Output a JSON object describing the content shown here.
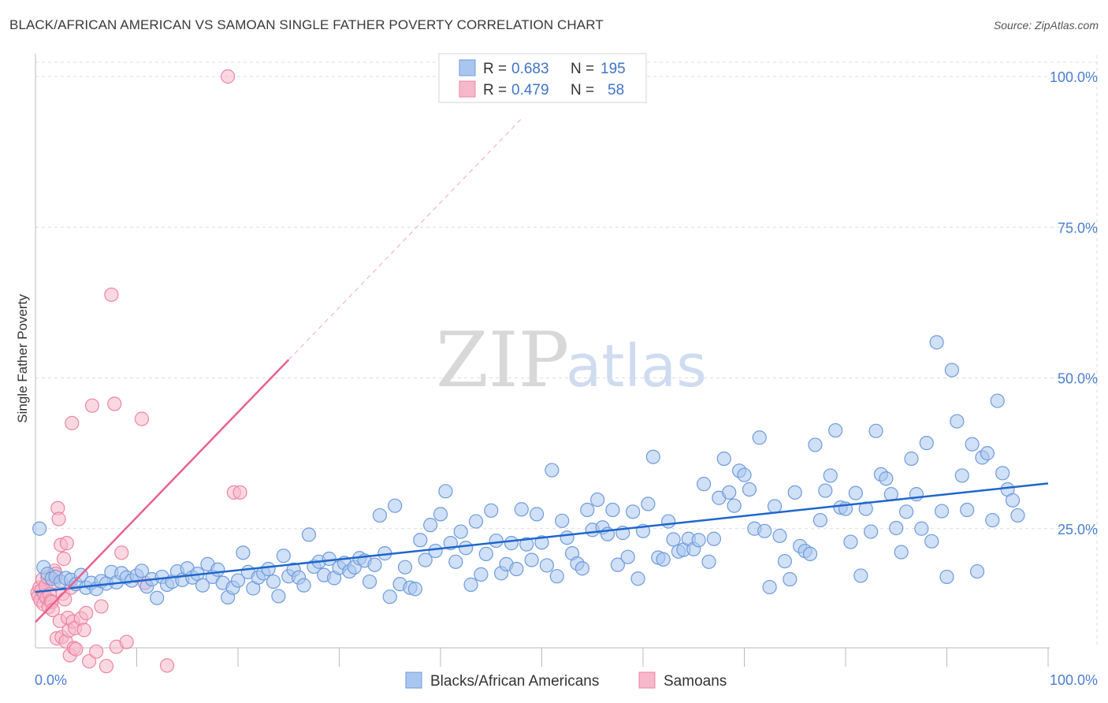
{
  "title": "BLACK/AFRICAN AMERICAN VS SAMOAN SINGLE FATHER POVERTY CORRELATION CHART",
  "source": "Source: ZipAtlas.com",
  "watermark": {
    "zip": "ZIP",
    "atlas": "atlas"
  },
  "colors": {
    "blue_fill": "#a9c6ef",
    "blue_stroke": "#6f9bdc",
    "blue_line": "#1f66cc",
    "pink_fill": "#f6b8ca",
    "pink_stroke": "#ee85a5",
    "pink_line": "#e8628e",
    "tick_text": "#4a7fd0",
    "grid": "#dcdcdc"
  },
  "chart_data": {
    "type": "scatter",
    "ylabel": "Single Father Poverty",
    "xlabel": "",
    "xlim": [
      0,
      100
    ],
    "ylim": [
      0,
      105
    ],
    "y_ticks": [
      25,
      50,
      75,
      100
    ],
    "y_tick_labels": [
      "25.0%",
      "50.0%",
      "75.0%",
      "100.0%"
    ],
    "x_tick_labels": [
      "0.0%",
      "100.0%"
    ],
    "grid": true,
    "legend": [
      {
        "r_label": "R =",
        "r": "0.683",
        "n_label": "N =",
        "n": "195"
      },
      {
        "r_label": "R =",
        "r": "0.479",
        "n_label": "N =",
        "n": "58"
      }
    ],
    "bottom_legend": [
      "Blacks/African Americans",
      "Samoans"
    ],
    "series": [
      {
        "name": "Blacks/African Americans",
        "trend": {
          "x0": 0,
          "y0": 14.5,
          "x1": 100,
          "y1": 32.5
        },
        "points": [
          [
            0.4,
            25.0
          ],
          [
            0.8,
            18.6
          ],
          [
            1.2,
            17.5
          ],
          [
            1.6,
            16.7
          ],
          [
            2.0,
            17.0
          ],
          [
            2.5,
            16.2
          ],
          [
            3.0,
            16.8
          ],
          [
            3.5,
            16.5
          ],
          [
            4.0,
            15.8
          ],
          [
            4.5,
            17.3
          ],
          [
            5.0,
            15.2
          ],
          [
            5.5,
            16.0
          ],
          [
            6.0,
            15.0
          ],
          [
            6.5,
            16.3
          ],
          [
            7.0,
            15.9
          ],
          [
            7.5,
            17.8
          ],
          [
            8.0,
            16.1
          ],
          [
            8.5,
            17.6
          ],
          [
            9.0,
            16.9
          ],
          [
            9.5,
            16.4
          ],
          [
            10.0,
            17.2
          ],
          [
            10.5,
            18.0
          ],
          [
            11.0,
            15.4
          ],
          [
            11.5,
            16.6
          ],
          [
            12.0,
            13.5
          ],
          [
            12.5,
            17.0
          ],
          [
            13.0,
            15.7
          ],
          [
            13.5,
            16.2
          ],
          [
            14.0,
            17.9
          ],
          [
            14.5,
            16.5
          ],
          [
            15.0,
            18.4
          ],
          [
            15.5,
            16.9
          ],
          [
            16.0,
            17.5
          ],
          [
            16.5,
            15.6
          ],
          [
            17.0,
            19.1
          ],
          [
            17.5,
            17.0
          ],
          [
            18.0,
            18.2
          ],
          [
            18.5,
            16.0
          ],
          [
            19.0,
            13.6
          ],
          [
            19.5,
            15.2
          ],
          [
            20.0,
            16.4
          ],
          [
            20.5,
            21.0
          ],
          [
            21.0,
            17.8
          ],
          [
            21.5,
            15.1
          ],
          [
            22.0,
            16.9
          ],
          [
            22.5,
            17.6
          ],
          [
            23.0,
            18.3
          ],
          [
            23.5,
            16.2
          ],
          [
            24.0,
            13.8
          ],
          [
            24.5,
            20.5
          ],
          [
            25.0,
            17.1
          ],
          [
            25.5,
            18.2
          ],
          [
            26.0,
            16.9
          ],
          [
            26.5,
            15.6
          ],
          [
            27.0,
            24.0
          ],
          [
            27.5,
            18.7
          ],
          [
            28.0,
            19.5
          ],
          [
            28.5,
            17.3
          ],
          [
            29.0,
            20.0
          ],
          [
            29.5,
            16.8
          ],
          [
            30.0,
            18.5
          ],
          [
            30.5,
            19.3
          ],
          [
            31.0,
            17.9
          ],
          [
            31.5,
            18.6
          ],
          [
            32.0,
            20.1
          ],
          [
            32.5,
            19.7
          ],
          [
            33.0,
            16.2
          ],
          [
            33.5,
            19.0
          ],
          [
            34.0,
            27.2
          ],
          [
            34.5,
            20.9
          ],
          [
            35.0,
            13.7
          ],
          [
            35.5,
            28.8
          ],
          [
            36.0,
            15.8
          ],
          [
            36.5,
            18.6
          ],
          [
            37.0,
            15.2
          ],
          [
            37.5,
            15.0
          ],
          [
            38.0,
            23.1
          ],
          [
            38.5,
            19.8
          ],
          [
            39.0,
            25.6
          ],
          [
            39.5,
            21.3
          ],
          [
            40.0,
            27.4
          ],
          [
            40.5,
            31.2
          ],
          [
            41.0,
            22.6
          ],
          [
            41.5,
            19.5
          ],
          [
            42.0,
            24.5
          ],
          [
            42.5,
            21.8
          ],
          [
            43.0,
            15.7
          ],
          [
            43.5,
            26.2
          ],
          [
            44.0,
            17.4
          ],
          [
            44.5,
            20.8
          ],
          [
            45.0,
            28.0
          ],
          [
            45.5,
            23.0
          ],
          [
            46.0,
            17.6
          ],
          [
            46.5,
            19.1
          ],
          [
            47.0,
            22.6
          ],
          [
            47.5,
            18.3
          ],
          [
            48.0,
            28.2
          ],
          [
            48.5,
            22.4
          ],
          [
            49.0,
            19.8
          ],
          [
            49.5,
            27.4
          ],
          [
            50.0,
            22.7
          ],
          [
            50.5,
            18.9
          ],
          [
            51.0,
            34.7
          ],
          [
            51.5,
            17.1
          ],
          [
            52.0,
            26.3
          ],
          [
            52.5,
            23.5
          ],
          [
            53.0,
            20.9
          ],
          [
            53.5,
            19.2
          ],
          [
            54.0,
            18.4
          ],
          [
            54.5,
            28.1
          ],
          [
            55.0,
            24.8
          ],
          [
            55.5,
            29.8
          ],
          [
            56.0,
            25.2
          ],
          [
            56.5,
            24.1
          ],
          [
            57.0,
            28.1
          ],
          [
            57.5,
            19.0
          ],
          [
            58.0,
            24.3
          ],
          [
            58.5,
            20.3
          ],
          [
            59.0,
            27.8
          ],
          [
            59.5,
            16.7
          ],
          [
            60.0,
            24.6
          ],
          [
            60.5,
            29.1
          ],
          [
            61.0,
            36.9
          ],
          [
            61.5,
            20.2
          ],
          [
            62.0,
            19.9
          ],
          [
            62.5,
            26.2
          ],
          [
            63.0,
            23.2
          ],
          [
            63.5,
            21.2
          ],
          [
            64.0,
            21.5
          ],
          [
            64.5,
            23.3
          ],
          [
            65.0,
            21.6
          ],
          [
            65.5,
            23.1
          ],
          [
            66.0,
            32.4
          ],
          [
            66.5,
            19.5
          ],
          [
            67.0,
            23.3
          ],
          [
            67.5,
            30.1
          ],
          [
            68.0,
            36.6
          ],
          [
            68.5,
            31.0
          ],
          [
            69.0,
            28.8
          ],
          [
            69.5,
            34.6
          ],
          [
            70.0,
            33.9
          ],
          [
            70.5,
            31.5
          ],
          [
            71.0,
            25.0
          ],
          [
            71.5,
            40.1
          ],
          [
            72.0,
            24.6
          ],
          [
            72.5,
            15.3
          ],
          [
            73.0,
            28.7
          ],
          [
            73.5,
            23.8
          ],
          [
            74.0,
            19.6
          ],
          [
            74.5,
            16.6
          ],
          [
            75.0,
            31.0
          ],
          [
            75.5,
            22.1
          ],
          [
            76.0,
            21.3
          ],
          [
            76.5,
            20.8
          ],
          [
            77.0,
            38.9
          ],
          [
            77.5,
            26.4
          ],
          [
            78.0,
            31.3
          ],
          [
            78.5,
            33.8
          ],
          [
            79.0,
            41.3
          ],
          [
            79.5,
            28.5
          ],
          [
            80.0,
            28.3
          ],
          [
            80.5,
            22.8
          ],
          [
            81.0,
            30.9
          ],
          [
            81.5,
            17.2
          ],
          [
            82.0,
            28.3
          ],
          [
            82.5,
            24.5
          ],
          [
            83.0,
            41.2
          ],
          [
            83.5,
            34.0
          ],
          [
            84.0,
            33.3
          ],
          [
            84.5,
            30.7
          ],
          [
            85.0,
            25.1
          ],
          [
            85.5,
            21.1
          ],
          [
            86.0,
            27.8
          ],
          [
            86.5,
            36.6
          ],
          [
            87.0,
            30.7
          ],
          [
            87.5,
            25.0
          ],
          [
            88.0,
            39.2
          ],
          [
            88.5,
            22.9
          ],
          [
            89.0,
            55.9
          ],
          [
            89.5,
            27.9
          ],
          [
            90.0,
            17.0
          ],
          [
            90.5,
            51.3
          ],
          [
            91.0,
            42.8
          ],
          [
            91.5,
            33.8
          ],
          [
            92.0,
            28.1
          ],
          [
            92.5,
            39.0
          ],
          [
            93.0,
            17.9
          ],
          [
            93.5,
            36.8
          ],
          [
            94.0,
            37.5
          ],
          [
            94.5,
            26.4
          ],
          [
            95.0,
            46.2
          ],
          [
            95.5,
            34.2
          ],
          [
            96.0,
            31.5
          ],
          [
            96.5,
            29.7
          ],
          [
            97.0,
            27.2
          ]
        ]
      },
      {
        "name": "Samoans",
        "trend": {
          "x0": 0,
          "y0": 9.5,
          "x1": 25,
          "y1": 53.0,
          "dash_x1": 48,
          "dash_y1": 93.0
        },
        "points": [
          [
            0.2,
            14.4
          ],
          [
            0.3,
            13.8
          ],
          [
            0.4,
            15.2
          ],
          [
            0.5,
            13.1
          ],
          [
            0.6,
            14.8
          ],
          [
            0.7,
            16.6
          ],
          [
            0.8,
            12.5
          ],
          [
            0.9,
            14.0
          ],
          [
            1.0,
            15.5
          ],
          [
            1.1,
            13.5
          ],
          [
            1.2,
            16.9
          ],
          [
            1.3,
            12.0
          ],
          [
            1.4,
            14.1
          ],
          [
            1.5,
            13.0
          ],
          [
            1.6,
            12.8
          ],
          [
            1.7,
            11.5
          ],
          [
            1.8,
            16.2
          ],
          [
            1.9,
            18.0
          ],
          [
            2.0,
            17.5
          ],
          [
            2.1,
            6.8
          ],
          [
            2.2,
            28.4
          ],
          [
            2.3,
            26.6
          ],
          [
            2.4,
            9.7
          ],
          [
            2.5,
            22.3
          ],
          [
            2.6,
            7.0
          ],
          [
            2.7,
            14.2
          ],
          [
            2.8,
            20.0
          ],
          [
            2.9,
            13.3
          ],
          [
            3.0,
            6.3
          ],
          [
            3.1,
            22.6
          ],
          [
            3.2,
            10.2
          ],
          [
            3.3,
            8.1
          ],
          [
            3.4,
            4.0
          ],
          [
            3.5,
            15.2
          ],
          [
            3.6,
            42.5
          ],
          [
            3.7,
            9.6
          ],
          [
            3.8,
            5.2
          ],
          [
            3.9,
            8.5
          ],
          [
            4.0,
            5.0
          ],
          [
            4.5,
            10.1
          ],
          [
            4.8,
            8.2
          ],
          [
            5.0,
            11.0
          ],
          [
            5.3,
            3.0
          ],
          [
            5.6,
            45.4
          ],
          [
            6.0,
            4.6
          ],
          [
            6.5,
            12.1
          ],
          [
            7.0,
            2.2
          ],
          [
            7.5,
            63.8
          ],
          [
            7.8,
            45.7
          ],
          [
            8.0,
            5.4
          ],
          [
            8.5,
            21.0
          ],
          [
            9.0,
            6.2
          ],
          [
            10.5,
            43.2
          ],
          [
            10.8,
            16.0
          ],
          [
            13.0,
            2.3
          ],
          [
            19.0,
            100.0
          ],
          [
            19.6,
            31.0
          ],
          [
            20.2,
            31.0
          ]
        ]
      }
    ]
  }
}
